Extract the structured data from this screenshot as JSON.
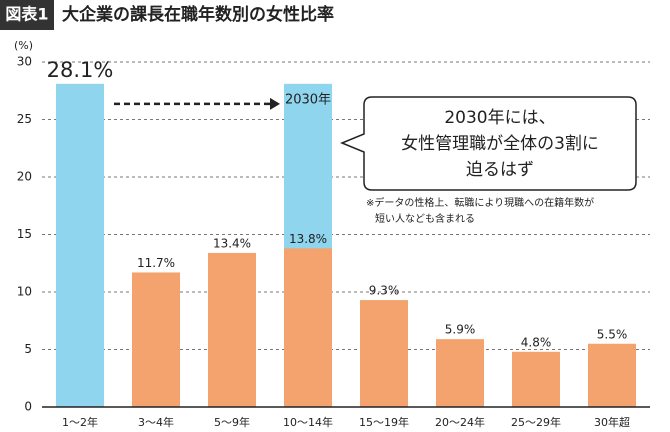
{
  "chart_data": {
    "type": "bar",
    "title_badge": "図表1",
    "title": "大企業の課長在職年数別の女性比率",
    "y_label": "(%)",
    "categories": [
      "1～2年",
      "3～4年",
      "5～9年",
      "10～14年",
      "15～19年",
      "20～24年",
      "25～29年",
      "30年超"
    ],
    "values": [
      28.1,
      11.7,
      13.4,
      13.8,
      9.3,
      5.9,
      4.8,
      5.5
    ],
    "value_labels": [
      "28.1%",
      "11.7%",
      "13.4%",
      "13.8%",
      "9.3%",
      "5.9%",
      "4.8%",
      "5.5%"
    ],
    "colors": [
      "#8fd5ee",
      "#f4a36f",
      "#f4a36f",
      "#f4a36f",
      "#f4a36f",
      "#f4a36f",
      "#f4a36f",
      "#f4a36f"
    ],
    "projection": {
      "label": "2030年",
      "category": "10～14年",
      "value": 28.1,
      "color": "#8fd5ee"
    },
    "callout": [
      "2030年には、",
      "女性管理職が全体の3割に",
      "迫るはず"
    ],
    "note": [
      "※データの性格上、転職により現職への在籍年数が",
      "短い人なども含まれる"
    ],
    "ylim": [
      0,
      30
    ],
    "yticks": [
      0,
      5,
      10,
      15,
      20,
      25,
      30
    ],
    "grid": true
  }
}
